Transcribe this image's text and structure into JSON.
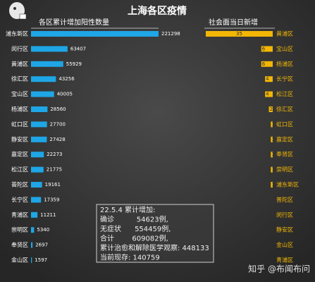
{
  "title": "上海各区疫情",
  "chart_data": [
    {
      "type": "bar",
      "orientation": "horizontal",
      "bar_direction": "right",
      "title": "各区累计增加阳性数量",
      "color": "#1ea6e6",
      "categories": [
        "浦东新区",
        "闵行区",
        "黄浦区",
        "徐汇区",
        "宝山区",
        "杨浦区",
        "虹口区",
        "静安区",
        "嘉定区",
        "松江区",
        "普陀区",
        "长宁区",
        "青浦区",
        "崇明区",
        "奉贤区",
        "金山区"
      ],
      "values": [
        221298,
        63407,
        55929,
        43256,
        40005,
        28560,
        27700,
        27428,
        22273,
        21775,
        19161,
        17359,
        11211,
        5340,
        2697,
        1597
      ]
    },
    {
      "type": "bar",
      "orientation": "horizontal",
      "bar_direction": "left",
      "title": "社会面当日新增",
      "color": "#f2b705",
      "categories": [
        "黄浦区",
        "宝山区",
        "杨浦区",
        "长宁区",
        "松江区",
        "徐汇区",
        "虹口区",
        "嘉定区",
        "奉贤区",
        "崇明区",
        "浦东新区",
        "普陀区",
        "闵行区",
        "静安区",
        "金山区",
        "青浦区"
      ],
      "values": [
        35,
        6,
        6,
        4,
        4,
        2,
        1,
        1,
        1,
        1,
        1,
        0,
        0,
        0,
        0,
        0
      ]
    }
  ],
  "summary": {
    "lines": [
      "22.5.4 累计增加:",
      "确诊          54623例,",
      "无症状      554459例,",
      "合计        609082例,",
      "累计治愈和解除医学观察: 448133",
      "当前现存: 140759"
    ]
  },
  "watermark": "知乎 @布闻布问"
}
